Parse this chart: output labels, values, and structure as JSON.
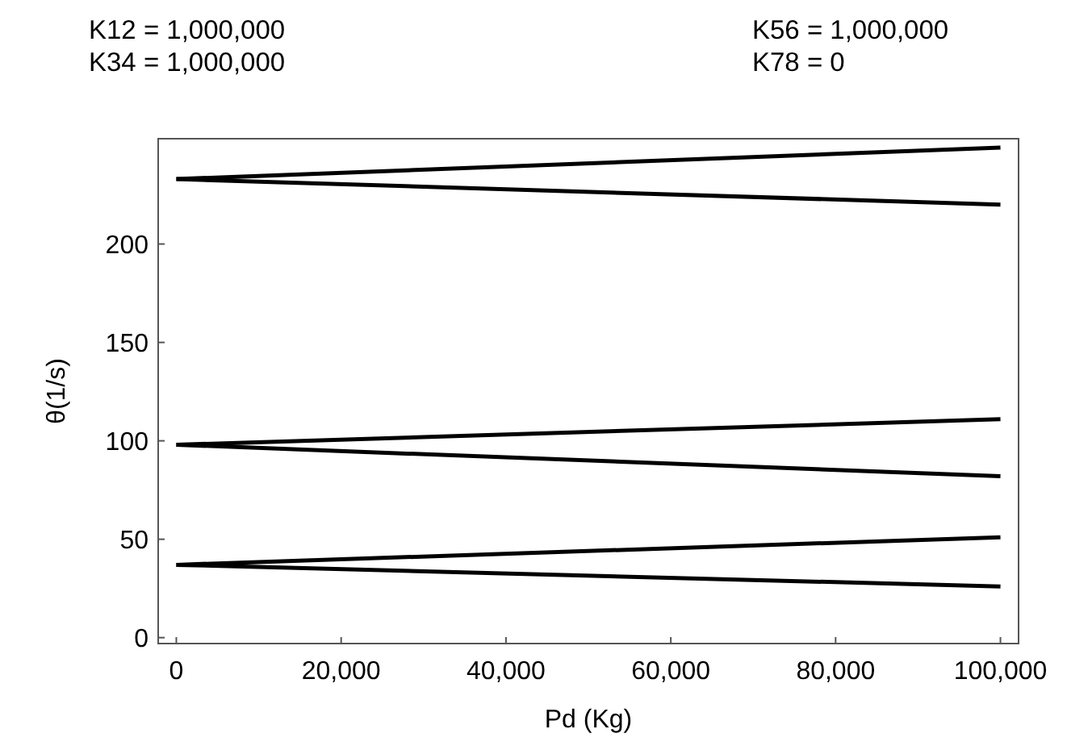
{
  "chart_data": {
    "type": "line",
    "xlabel": "Pd (Kg)",
    "ylabel": "θ(1/s)",
    "annotations": [
      "K12 = 1,000,000",
      "K34 = 1,000,000",
      "K56 = 1,000,000",
      "K78 = 0"
    ],
    "x": [
      0,
      100000
    ],
    "series": [
      {
        "color": "#000000",
        "values": [
          233,
          249
        ]
      },
      {
        "color": "#000000",
        "values": [
          233,
          220
        ]
      },
      {
        "color": "#000000",
        "values": [
          98,
          111
        ]
      },
      {
        "color": "#000000",
        "values": [
          98,
          82
        ]
      },
      {
        "color": "#000000",
        "values": [
          37,
          51
        ]
      },
      {
        "color": "#000000",
        "values": [
          37,
          26
        ]
      }
    ],
    "xlim": [
      -2200,
      102200
    ],
    "ylim": [
      -3,
      253.5
    ],
    "xticks": [
      {
        "value": 0,
        "label": "0"
      },
      {
        "value": 20000,
        "label": "20,000"
      },
      {
        "value": 40000,
        "label": "40,000"
      },
      {
        "value": 60000,
        "label": "60,000"
      },
      {
        "value": 80000,
        "label": "80,000"
      },
      {
        "value": 100000,
        "label": "100,000"
      }
    ],
    "yticks": [
      0,
      50,
      100,
      150,
      200
    ],
    "marker": "none",
    "line_style": "solid"
  }
}
